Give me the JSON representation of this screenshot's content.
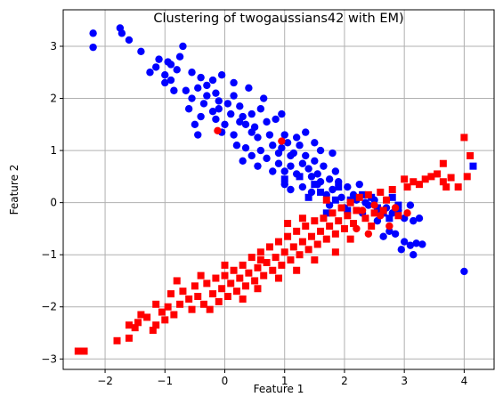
{
  "chart_data": {
    "type": "scatter",
    "title": "Clustering of twogaussians42 with EM)",
    "xlabel": "Feature 1",
    "ylabel": "Feature 2",
    "xlim": [
      -2.7,
      4.5
    ],
    "ylim": [
      -3.2,
      3.7
    ],
    "xticks": [
      -2,
      -1,
      0,
      1,
      2,
      3,
      4
    ],
    "yticks": [
      -3,
      -2,
      -1,
      0,
      1,
      2,
      3
    ],
    "grid": true,
    "colors": {
      "blue": "#0000ff",
      "red": "#ff0000",
      "grid": "#b0b0b0"
    },
    "groups": [
      {
        "marker": "circle",
        "color": "#0000ff",
        "points": [
          [
            -2.2,
            3.25
          ],
          [
            -2.2,
            2.98
          ],
          [
            -1.75,
            3.35
          ],
          [
            -1.72,
            3.25
          ],
          [
            -1.6,
            3.12
          ],
          [
            -1.4,
            2.9
          ],
          [
            -1.1,
            2.75
          ],
          [
            -1.15,
            2.6
          ],
          [
            -0.95,
            2.7
          ],
          [
            -0.7,
            3.0
          ],
          [
            -0.75,
            2.8
          ],
          [
            -1.0,
            2.45
          ],
          [
            -1.0,
            2.3
          ],
          [
            -0.9,
            2.35
          ],
          [
            -0.8,
            2.55
          ],
          [
            -0.55,
            2.5
          ],
          [
            -0.4,
            2.4
          ],
          [
            -0.2,
            2.35
          ],
          [
            -0.05,
            2.45
          ],
          [
            -0.65,
            2.15
          ],
          [
            -0.55,
            2.0
          ],
          [
            -0.45,
            2.2
          ],
          [
            -0.3,
            2.05
          ],
          [
            -0.15,
            2.1
          ],
          [
            -0.6,
            1.8
          ],
          [
            -0.4,
            1.65
          ],
          [
            -0.5,
            1.5
          ],
          [
            -0.45,
            1.3
          ],
          [
            -0.35,
            1.9
          ],
          [
            -0.2,
            1.75
          ],
          [
            -0.15,
            1.6
          ],
          [
            0.05,
            1.9
          ],
          [
            0.15,
            2.05
          ],
          [
            0.1,
            1.7
          ],
          [
            0.25,
            1.85
          ],
          [
            0.35,
            1.5
          ],
          [
            0.0,
            1.5
          ],
          [
            -0.05,
            1.35
          ],
          [
            0.15,
            1.3
          ],
          [
            0.3,
            1.65
          ],
          [
            0.45,
            1.7
          ],
          [
            0.5,
            1.45
          ],
          [
            0.6,
            1.8
          ],
          [
            0.7,
            1.55
          ],
          [
            0.55,
            1.25
          ],
          [
            0.75,
            1.3
          ],
          [
            0.85,
            1.6
          ],
          [
            0.95,
            1.7
          ],
          [
            0.2,
            1.1
          ],
          [
            0.35,
            1.05
          ],
          [
            0.45,
            0.9
          ],
          [
            0.6,
            1.0
          ],
          [
            0.7,
            0.85
          ],
          [
            0.8,
            1.1
          ],
          [
            0.9,
            0.95
          ],
          [
            1.0,
            1.3
          ],
          [
            1.05,
            1.15
          ],
          [
            1.15,
            0.95
          ],
          [
            1.25,
            1.1
          ],
          [
            1.35,
            0.9
          ],
          [
            0.9,
            0.75
          ],
          [
            1.0,
            0.6
          ],
          [
            1.1,
            0.7
          ],
          [
            1.2,
            0.55
          ],
          [
            1.3,
            0.75
          ],
          [
            1.4,
            0.65
          ],
          [
            1.5,
            0.8
          ],
          [
            1.55,
            0.55
          ],
          [
            1.65,
            0.7
          ],
          [
            1.75,
            0.45
          ],
          [
            1.85,
            0.6
          ],
          [
            1.9,
            0.4
          ],
          [
            1.0,
            0.35
          ],
          [
            1.1,
            0.25
          ],
          [
            1.3,
            0.3
          ],
          [
            1.45,
            0.2
          ],
          [
            1.55,
            0.35
          ],
          [
            1.7,
            0.15
          ],
          [
            1.8,
            0.25
          ],
          [
            1.95,
            0.1
          ],
          [
            2.05,
            0.3
          ],
          [
            2.15,
            0.15
          ],
          [
            2.25,
            0.35
          ],
          [
            2.35,
            0.0
          ],
          [
            1.5,
            1.15
          ],
          [
            1.6,
            1.0
          ],
          [
            1.8,
            0.95
          ],
          [
            0.3,
            0.8
          ],
          [
            0.55,
            0.7
          ],
          [
            0.8,
            0.6
          ],
          [
            1.2,
            1.25
          ],
          [
            1.35,
            1.35
          ],
          [
            0.65,
            2.0
          ],
          [
            0.4,
            2.2
          ],
          [
            0.15,
            2.3
          ],
          [
            -0.1,
            1.95
          ],
          [
            2.4,
            -0.05
          ],
          [
            2.5,
            0.05
          ],
          [
            2.6,
            -0.15
          ],
          [
            2.7,
            -0.1
          ],
          [
            2.8,
            -0.2
          ],
          [
            2.9,
            -0.15
          ],
          [
            3.0,
            -0.3
          ],
          [
            3.1,
            -0.05
          ],
          [
            3.15,
            -0.35
          ],
          [
            3.25,
            -0.3
          ],
          [
            2.75,
            -0.55
          ],
          [
            2.85,
            -0.6
          ],
          [
            3.0,
            -0.75
          ],
          [
            3.1,
            -0.82
          ],
          [
            3.2,
            -0.78
          ],
          [
            3.3,
            -0.8
          ],
          [
            2.95,
            -0.9
          ],
          [
            3.15,
            -1.0
          ],
          [
            4.0,
            -1.32
          ],
          [
            2.65,
            -0.65
          ],
          [
            2.55,
            -0.35
          ],
          [
            2.3,
            -0.2
          ],
          [
            2.0,
            -0.1
          ],
          [
            1.75,
            -0.05
          ],
          [
            -1.25,
            2.5
          ],
          [
            -0.85,
            2.15
          ],
          [
            -0.1,
            1.8
          ],
          [
            0.45,
            1.35
          ],
          [
            1.1,
            0.9
          ],
          [
            1.6,
            0.4
          ],
          [
            2.2,
            0.05
          ],
          [
            -0.9,
            2.65
          ],
          [
            -0.3,
            2.25
          ],
          [
            0.25,
            1.55
          ],
          [
            0.95,
            1.05
          ],
          [
            1.45,
            0.5
          ]
        ]
      },
      {
        "marker": "square",
        "color": "#0000ff",
        "points": [
          [
            1.0,
            0.45
          ],
          [
            1.25,
            0.5
          ],
          [
            1.5,
            0.35
          ],
          [
            1.6,
            0.2
          ],
          [
            1.9,
            0.3
          ],
          [
            2.1,
            0.05
          ],
          [
            2.3,
            0.15
          ],
          [
            2.55,
            -0.1
          ],
          [
            2.75,
            -0.3
          ],
          [
            2.8,
            0.1
          ],
          [
            4.15,
            0.7
          ],
          [
            2.45,
            0.1
          ],
          [
            2.05,
            -0.15
          ],
          [
            1.85,
            0.05
          ],
          [
            1.7,
            -0.2
          ],
          [
            2.65,
            -0.2
          ],
          [
            2.9,
            -0.05
          ],
          [
            1.4,
            0.1
          ]
        ]
      },
      {
        "marker": "circle",
        "color": "#ff0000",
        "points": [
          [
            -0.12,
            1.38
          ],
          [
            0.95,
            1.18
          ],
          [
            2.3,
            -0.15
          ],
          [
            2.6,
            -0.25
          ],
          [
            2.75,
            -0.45
          ],
          [
            3.05,
            -0.2
          ],
          [
            2.85,
            -0.1
          ],
          [
            2.5,
            -0.05
          ],
          [
            2.4,
            -0.6
          ],
          [
            2.2,
            -0.5
          ]
        ]
      },
      {
        "marker": "square",
        "color": "#ff0000",
        "points": [
          [
            -2.45,
            -2.85
          ],
          [
            -2.35,
            -2.85
          ],
          [
            -1.8,
            -2.65
          ],
          [
            -1.6,
            -2.6
          ],
          [
            -1.5,
            -2.4
          ],
          [
            -1.45,
            -2.3
          ],
          [
            -1.4,
            -2.15
          ],
          [
            -1.3,
            -2.2
          ],
          [
            -1.2,
            -2.45
          ],
          [
            -1.15,
            -2.35
          ],
          [
            -1.05,
            -2.1
          ],
          [
            -1.15,
            -1.95
          ],
          [
            -1.0,
            -2.25
          ],
          [
            -0.95,
            -2.0
          ],
          [
            -0.9,
            -1.75
          ],
          [
            -0.85,
            -2.15
          ],
          [
            -0.75,
            -1.95
          ],
          [
            -0.7,
            -1.7
          ],
          [
            -0.6,
            -1.85
          ],
          [
            -0.55,
            -2.05
          ],
          [
            -0.5,
            -1.6
          ],
          [
            -0.45,
            -1.8
          ],
          [
            -0.35,
            -1.95
          ],
          [
            -0.3,
            -1.55
          ],
          [
            -0.2,
            -1.75
          ],
          [
            -0.15,
            -1.45
          ],
          [
            -0.1,
            -1.9
          ],
          [
            -0.05,
            -1.65
          ],
          [
            0.0,
            -1.4
          ],
          [
            0.05,
            -1.8
          ],
          [
            0.1,
            -1.55
          ],
          [
            0.15,
            -1.3
          ],
          [
            0.2,
            -1.7
          ],
          [
            0.25,
            -1.45
          ],
          [
            0.3,
            -1.2
          ],
          [
            0.35,
            -1.6
          ],
          [
            0.4,
            -1.35
          ],
          [
            0.45,
            -1.05
          ],
          [
            0.5,
            -1.5
          ],
          [
            0.55,
            -1.25
          ],
          [
            0.6,
            -0.95
          ],
          [
            0.65,
            -1.4
          ],
          [
            0.7,
            -1.15
          ],
          [
            0.75,
            -0.85
          ],
          [
            0.8,
            -1.3
          ],
          [
            0.85,
            -1.05
          ],
          [
            0.9,
            -0.75
          ],
          [
            0.95,
            -1.2
          ],
          [
            1.0,
            -0.95
          ],
          [
            1.05,
            -0.65
          ],
          [
            1.1,
            -1.1
          ],
          [
            1.15,
            -0.85
          ],
          [
            1.2,
            -0.55
          ],
          [
            1.25,
            -1.0
          ],
          [
            1.3,
            -0.75
          ],
          [
            1.35,
            -0.45
          ],
          [
            1.4,
            -0.9
          ],
          [
            1.45,
            -0.65
          ],
          [
            1.5,
            -0.35
          ],
          [
            1.55,
            -0.8
          ],
          [
            1.6,
            -0.55
          ],
          [
            1.65,
            -0.3
          ],
          [
            1.7,
            -0.7
          ],
          [
            1.75,
            -0.45
          ],
          [
            1.8,
            -0.2
          ],
          [
            1.85,
            -0.6
          ],
          [
            1.9,
            -0.35
          ],
          [
            1.95,
            -0.1
          ],
          [
            2.0,
            -0.5
          ],
          [
            2.05,
            -0.25
          ],
          [
            2.1,
            0.0
          ],
          [
            2.15,
            -0.4
          ],
          [
            2.2,
            -0.15
          ],
          [
            2.25,
            0.1
          ],
          [
            2.35,
            -0.3
          ],
          [
            2.4,
            0.15
          ],
          [
            2.5,
            -0.2
          ],
          [
            2.6,
            0.2
          ],
          [
            2.7,
            0.05
          ],
          [
            2.8,
            0.25
          ],
          [
            2.9,
            -0.25
          ],
          [
            3.0,
            0.45
          ],
          [
            3.05,
            0.3
          ],
          [
            3.15,
            0.4
          ],
          [
            3.25,
            0.35
          ],
          [
            3.35,
            0.45
          ],
          [
            3.45,
            0.5
          ],
          [
            3.55,
            0.55
          ],
          [
            3.65,
            0.4
          ],
          [
            3.7,
            0.3
          ],
          [
            3.78,
            0.48
          ],
          [
            3.9,
            0.3
          ],
          [
            4.05,
            0.5
          ],
          [
            4.0,
            1.25
          ],
          [
            4.1,
            0.9
          ],
          [
            3.65,
            0.75
          ],
          [
            -0.25,
            -2.05
          ],
          [
            0.3,
            -1.85
          ],
          [
            0.9,
            -1.45
          ],
          [
            1.5,
            -1.1
          ],
          [
            2.1,
            -0.7
          ],
          [
            -0.8,
            -1.5
          ],
          [
            1.2,
            -1.3
          ],
          [
            1.85,
            -0.95
          ],
          [
            0.55,
            -1.65
          ],
          [
            -1.6,
            -2.35
          ],
          [
            2.45,
            -0.45
          ],
          [
            2.65,
            -0.15
          ],
          [
            0.0,
            -1.2
          ],
          [
            0.6,
            -1.1
          ],
          [
            1.3,
            -0.3
          ],
          [
            -0.4,
            -1.4
          ],
          [
            1.05,
            -0.4
          ],
          [
            1.7,
            0.05
          ]
        ]
      }
    ]
  }
}
